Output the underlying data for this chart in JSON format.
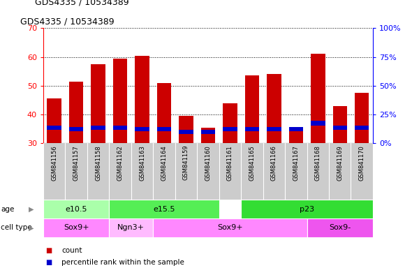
{
  "title": "GDS4335 / 10534389",
  "samples": [
    "GSM841156",
    "GSM841157",
    "GSM841158",
    "GSM841162",
    "GSM841163",
    "GSM841164",
    "GSM841159",
    "GSM841160",
    "GSM841161",
    "GSM841165",
    "GSM841166",
    "GSM841167",
    "GSM841168",
    "GSM841169",
    "GSM841170"
  ],
  "counts": [
    45.5,
    51.5,
    57.5,
    59.5,
    60.5,
    51.0,
    39.5,
    35.5,
    44.0,
    53.5,
    54.0,
    35.5,
    61.0,
    43.0,
    47.5
  ],
  "percentile_values": [
    35.5,
    35.0,
    35.5,
    35.5,
    35.0,
    35.0,
    34.0,
    34.0,
    35.0,
    35.0,
    35.0,
    35.0,
    37.0,
    35.5,
    35.5
  ],
  "blue_bar_height": 1.5,
  "ylim_left": [
    30,
    70
  ],
  "ylim_right": [
    0,
    100
  ],
  "yticks_left": [
    30,
    40,
    50,
    60,
    70
  ],
  "yticks_right": [
    0,
    25,
    50,
    75,
    100
  ],
  "yticklabels_right": [
    "0%",
    "25%",
    "50%",
    "75%",
    "100%"
  ],
  "bar_color": "#cc0000",
  "blue_color": "#0000cc",
  "tick_area_bg": "#cccccc",
  "age_groups": [
    {
      "label": "e10.5",
      "start": 0,
      "end": 2,
      "color": "#aaffaa"
    },
    {
      "label": "e15.5",
      "start": 3,
      "end": 7,
      "color": "#55ee55"
    },
    {
      "label": "p23",
      "start": 9,
      "end": 14,
      "color": "#33dd33"
    }
  ],
  "cell_groups": [
    {
      "label": "Sox9+",
      "start": 0,
      "end": 2,
      "color": "#ff88ff"
    },
    {
      "label": "Ngn3+",
      "start": 3,
      "end": 4,
      "color": "#ffbbff"
    },
    {
      "label": "Sox9+",
      "start": 5,
      "end": 11,
      "color": "#ff88ff"
    },
    {
      "label": "Sox9-",
      "start": 12,
      "end": 14,
      "color": "#ee55ee"
    }
  ],
  "legend_count_color": "#cc0000",
  "legend_pct_color": "#0000cc",
  "age_label": "age",
  "cell_type_label": "cell type",
  "legend_count_text": "count",
  "legend_pct_text": "percentile rank within the sample"
}
